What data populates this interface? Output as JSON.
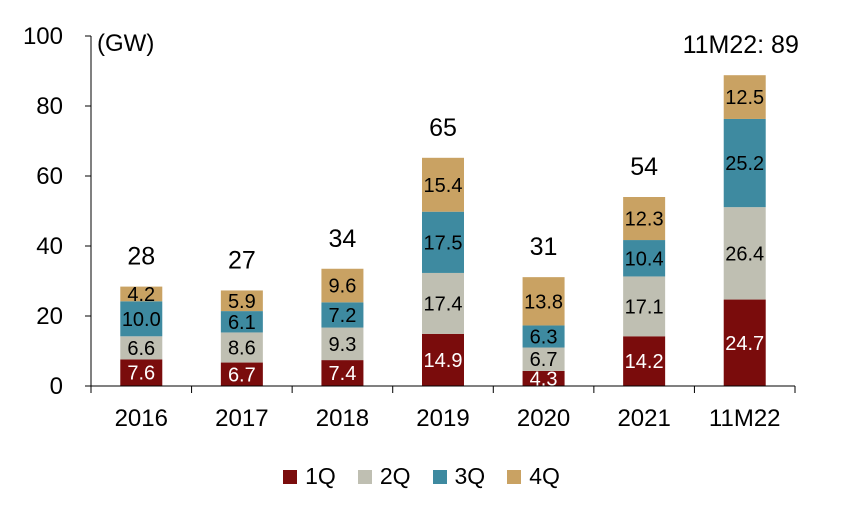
{
  "chart_data": {
    "type": "bar",
    "stacked": true,
    "unit_label": "(GW)",
    "categories": [
      "2016",
      "2017",
      "2018",
      "2019",
      "2020",
      "2021",
      "11M22"
    ],
    "series": [
      {
        "name": "1Q",
        "color": "#7a0c0c",
        "label_color": "#ffffff",
        "values": [
          7.6,
          6.7,
          7.4,
          14.9,
          4.3,
          14.2,
          24.7
        ]
      },
      {
        "name": "2Q",
        "color": "#bfbfb2",
        "label_color": "#000000",
        "values": [
          6.6,
          8.6,
          9.3,
          17.4,
          6.7,
          17.1,
          26.4
        ]
      },
      {
        "name": "3Q",
        "color": "#3e8aa0",
        "label_color": "#000000",
        "values": [
          10.0,
          6.1,
          7.2,
          17.5,
          6.3,
          10.4,
          25.2
        ]
      },
      {
        "name": "4Q",
        "color": "#c9a263",
        "label_color": "#000000",
        "values": [
          4.2,
          5.9,
          9.6,
          15.4,
          13.8,
          12.3,
          12.5
        ]
      }
    ],
    "totals": [
      "28",
      "27",
      "34",
      "65",
      "31",
      "54",
      "11M22: 89"
    ],
    "yticks": [
      "0",
      "20",
      "40",
      "60",
      "80",
      "100"
    ],
    "ylim": [
      0,
      100
    ],
    "legend_position": "bottom",
    "grid": false
  }
}
